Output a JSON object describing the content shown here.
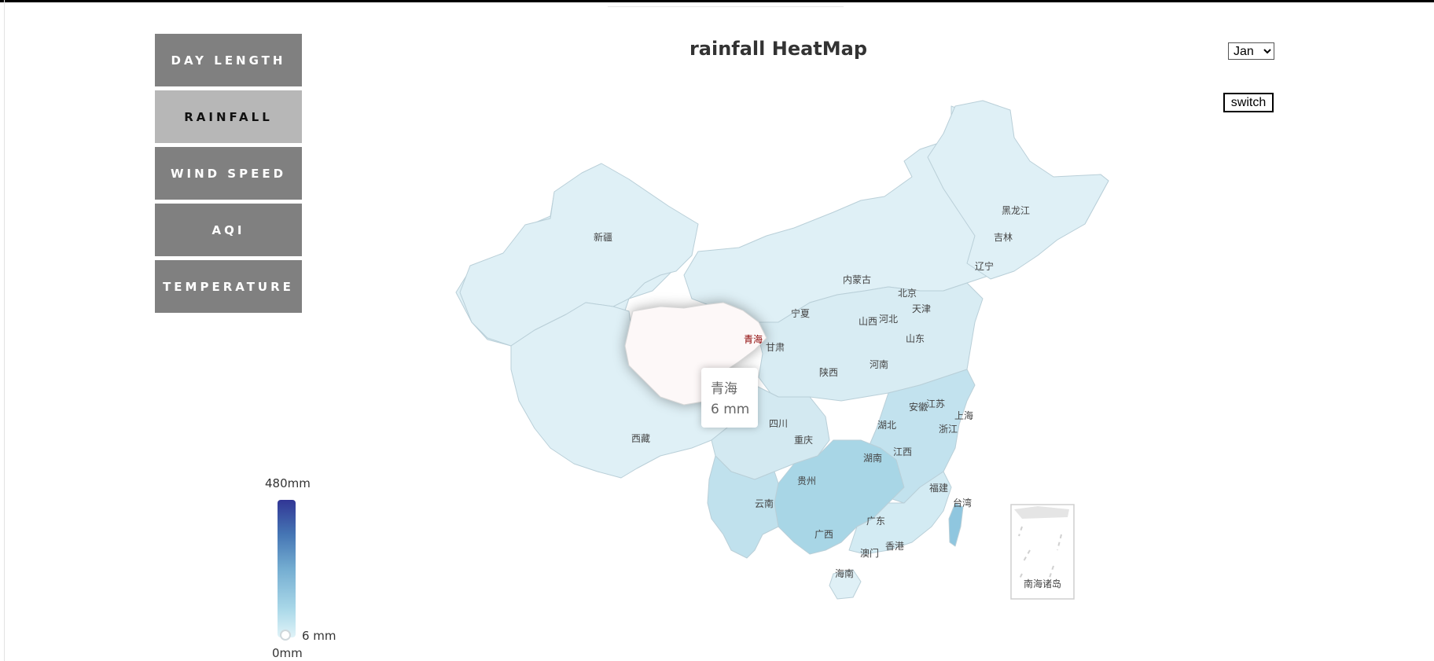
{
  "nav": {
    "items": [
      {
        "label": "DAY LENGTH",
        "active": false
      },
      {
        "label": "RAINFALL",
        "active": true
      },
      {
        "label": "WIND SPEED",
        "active": false
      },
      {
        "label": "AQI",
        "active": false
      },
      {
        "label": "TEMPERATURE",
        "active": false
      }
    ]
  },
  "title": "rainfall HeatMap",
  "month_selector": {
    "selected": "Jan"
  },
  "switch_label": "switch",
  "tooltip": {
    "region": "青海",
    "value": "6 mm"
  },
  "legend": {
    "max_label": "480mm",
    "min_label": "0mm",
    "handle_label": "6 mm",
    "colors": [
      "#313695",
      "#4575b4",
      "#74add1",
      "#abd9e9",
      "#e0f3f8"
    ]
  },
  "map": {
    "highlight_color": "#fdf8f8",
    "highlight_label_color": "#8b0000",
    "provinces": [
      "新疆",
      "西藏",
      "青海",
      "甘肃",
      "宁夏",
      "内蒙古",
      "黑龙江",
      "吉林",
      "辽宁",
      "北京",
      "天津",
      "河北",
      "山西",
      "山东",
      "河南",
      "陕西",
      "四川",
      "重庆",
      "湖北",
      "安徽",
      "江苏",
      "上海",
      "浙江",
      "湖南",
      "江西",
      "贵州",
      "云南",
      "广西",
      "广东",
      "福建",
      "台湾",
      "香港",
      "澳门",
      "海南",
      "南海诸岛"
    ]
  }
}
